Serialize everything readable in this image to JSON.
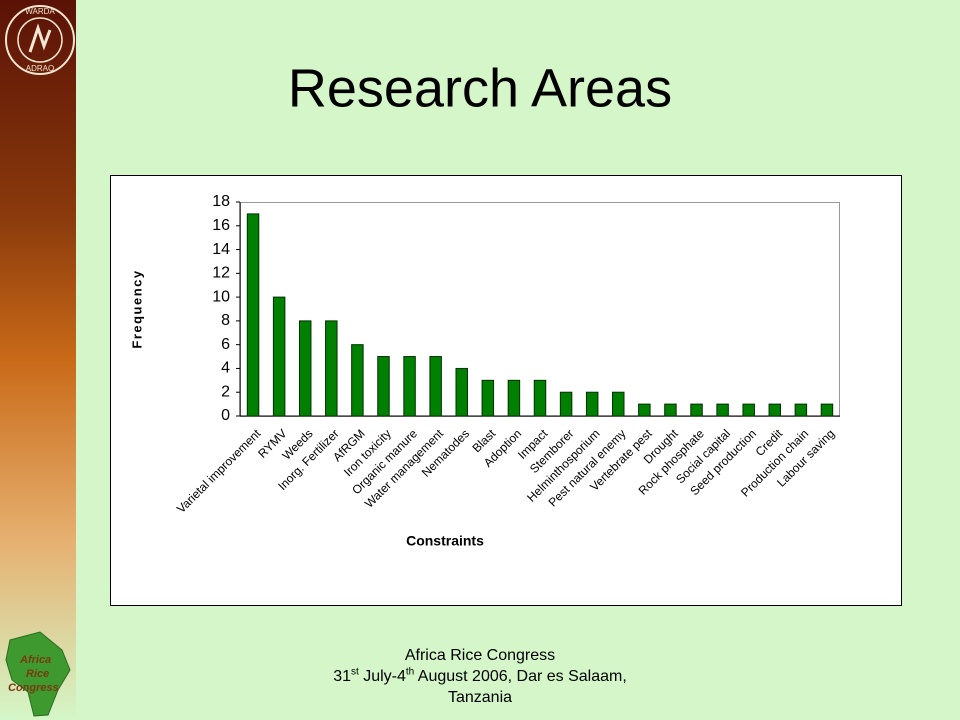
{
  "logos": {
    "top": [
      "WARDA",
      "ADRAO"
    ],
    "bottom": [
      "Africa",
      "Rice",
      "Congress"
    ]
  },
  "footer": {
    "line1": "Africa Rice Congress",
    "line2": [
      "31",
      "st",
      " July-4",
      "th",
      " August 2006, Dar es Salaam,"
    ],
    "line3": "Tanzania"
  },
  "chart_data": {
    "type": "bar",
    "title": "Research Areas",
    "x_label": "Constraints",
    "y_label": "Frequency",
    "categories": [
      "Varietal improvement",
      "RYMV",
      "Weeds",
      "Inorg. Fertilizer",
      "AfRGM",
      "Iron toxicity",
      "Organic manure",
      "Water management",
      "Nematodes",
      "Blast",
      "Adoption",
      "Impact",
      "Stemborer",
      "Helminthosporium",
      "Pest natural enemy",
      "Vertebrate pest",
      "Drought",
      "Rock phosphate",
      "Social capital",
      "Seed production",
      "Credit",
      "Production chain",
      "Labour saving"
    ],
    "values": [
      17,
      10,
      8,
      8,
      6,
      5,
      5,
      5,
      4,
      3,
      3,
      3,
      2,
      2,
      2,
      1,
      1,
      1,
      1,
      1,
      1,
      1,
      1
    ],
    "color": "#008000",
    "ylim": [
      0,
      18
    ],
    "yticks": [
      0,
      2,
      4,
      6,
      8,
      10,
      12,
      14,
      16,
      18
    ],
    "grid": false
  }
}
